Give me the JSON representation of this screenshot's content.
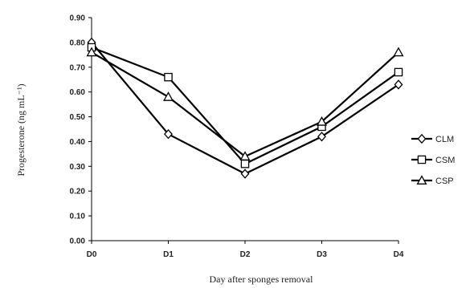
{
  "chart_data": {
    "type": "line",
    "title": "",
    "xlabel": "Day after sponges removal",
    "ylabel": "Progesterone (ng mL⁻¹)",
    "x": [
      "D0",
      "D1",
      "D2",
      "D3",
      "D4"
    ],
    "ylim": [
      0,
      0.9
    ],
    "yticks": [
      "0.00",
      "0.10",
      "0.20",
      "0.30",
      "0.40",
      "0.50",
      "0.60",
      "0.70",
      "0.80",
      "0.90"
    ],
    "grid": false,
    "legend_position": "right",
    "series": [
      {
        "name": "CLM",
        "marker": "diamond",
        "values": [
          0.8,
          0.43,
          0.27,
          0.42,
          0.63
        ]
      },
      {
        "name": "CSM",
        "marker": "square",
        "values": [
          0.78,
          0.66,
          0.31,
          0.46,
          0.68
        ]
      },
      {
        "name": "CSP",
        "marker": "triangle",
        "values": [
          0.76,
          0.58,
          0.34,
          0.48,
          0.76
        ]
      }
    ],
    "colors": {
      "line": "#000000",
      "marker_fill": "#ffffff"
    }
  }
}
